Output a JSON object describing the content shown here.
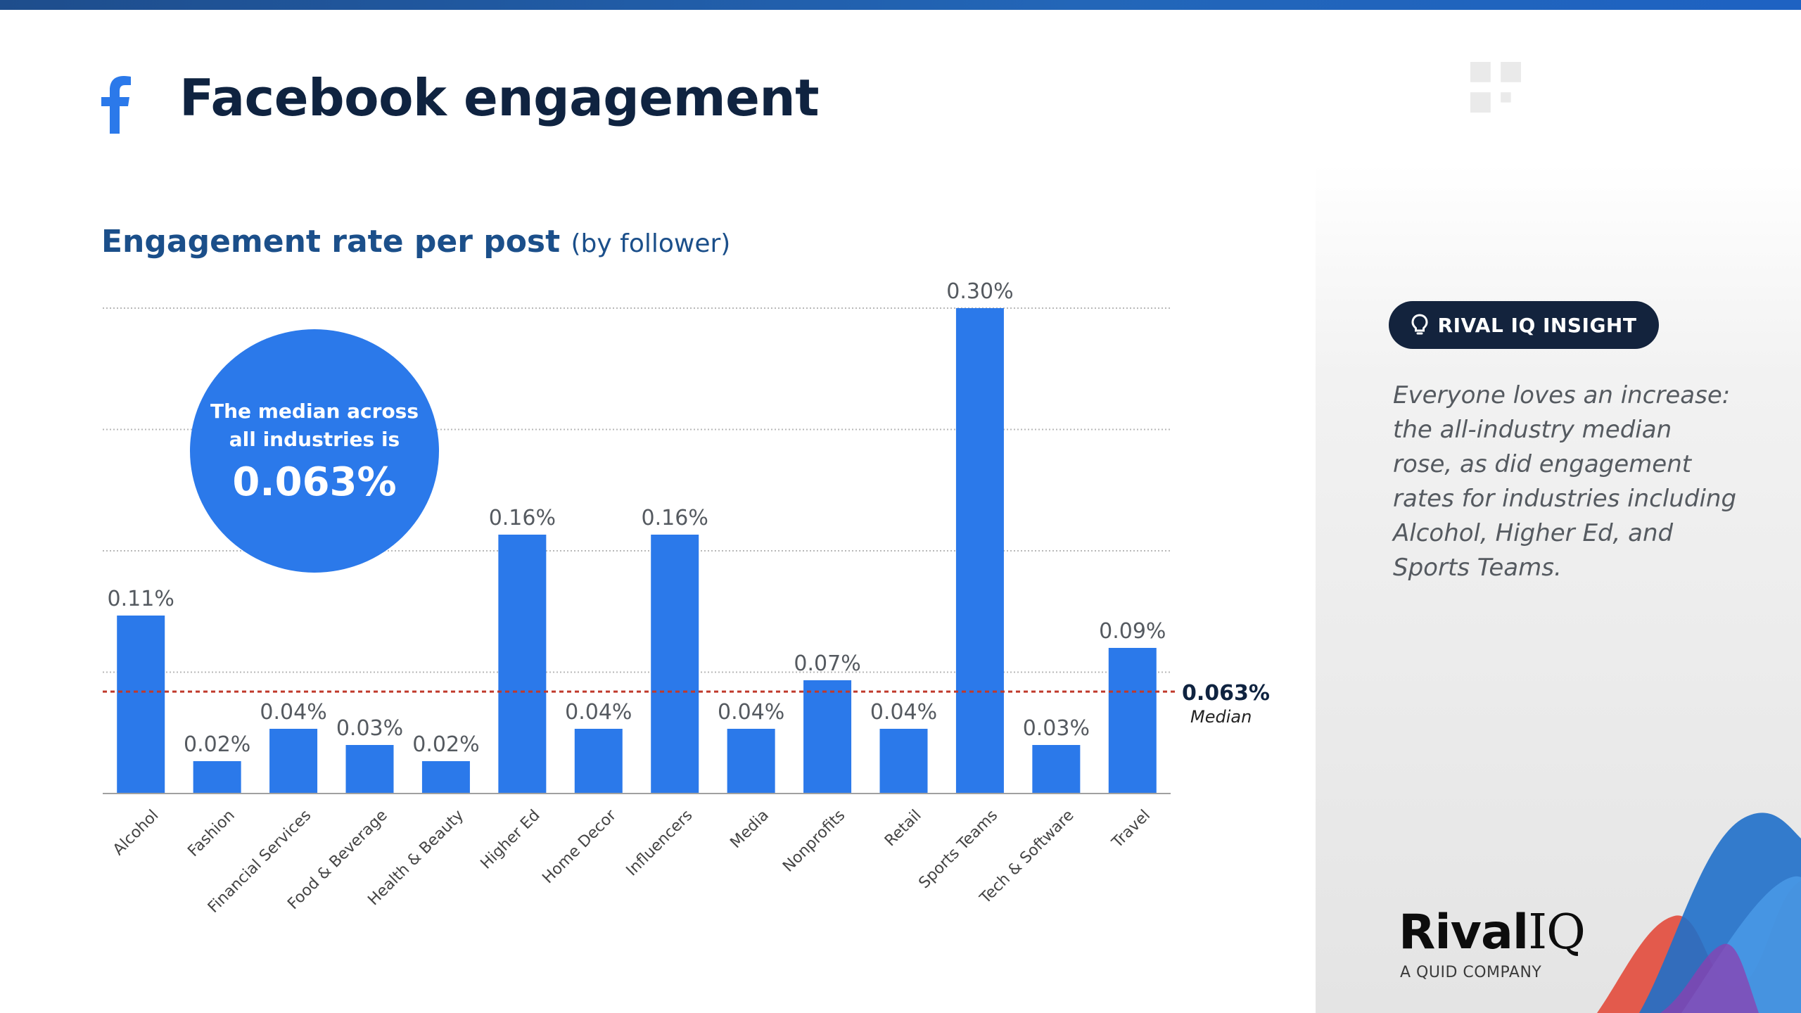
{
  "header": {
    "title": "Facebook engagement"
  },
  "chart_heading": {
    "main": "Engagement rate per post",
    "sub": "(by follower)"
  },
  "median_bubble": {
    "line1": "The median across",
    "line2": "all industries is",
    "value": "0.063%"
  },
  "median_marker": {
    "value_label": "0.063%",
    "caption": "Median"
  },
  "insight": {
    "badge_label": "RIVAL IQ INSIGHT",
    "text": "Everyone loves an increase: the all-industry median rose, as did engagement rates for industries including Alcohol, Higher Ed, and Sports Teams."
  },
  "brand": {
    "name_part1": "Rival",
    "name_part2": "IQ",
    "tagline": "A QUID COMPANY"
  },
  "colors": {
    "bar": "#2b79ea",
    "median_line": "#c0392b",
    "title": "#0f2340",
    "heading": "#1b4f8a",
    "badge_bg": "#13233d",
    "facebook_blue": "#2b79ea"
  },
  "icons": {
    "header": "facebook-f-icon",
    "insight": "lightbulb-icon"
  },
  "chart_data": {
    "type": "bar",
    "title": "Engagement rate per post (by follower)",
    "xlabel": "",
    "ylabel": "",
    "ylim": [
      0,
      0.3
    ],
    "grid": true,
    "unit": "%",
    "categories": [
      "Alcohol",
      "Fashion",
      "Financial Services",
      "Food & Beverage",
      "Health & Beauty",
      "Higher Ed",
      "Home Decor",
      "Influencers",
      "Media",
      "Nonprofits",
      "Retail",
      "Sports Teams",
      "Tech & Software",
      "Travel"
    ],
    "values": [
      0.11,
      0.02,
      0.04,
      0.03,
      0.02,
      0.16,
      0.04,
      0.16,
      0.04,
      0.07,
      0.04,
      0.3,
      0.03,
      0.09
    ],
    "value_labels": [
      "0.11%",
      "0.02%",
      "0.04%",
      "0.03%",
      "0.02%",
      "0.16%",
      "0.04%",
      "0.16%",
      "0.04%",
      "0.07%",
      "0.04%",
      "0.30%",
      "0.03%",
      "0.09%"
    ],
    "reference_line": {
      "value": 0.063,
      "label": "0.063%",
      "caption": "Median"
    }
  }
}
